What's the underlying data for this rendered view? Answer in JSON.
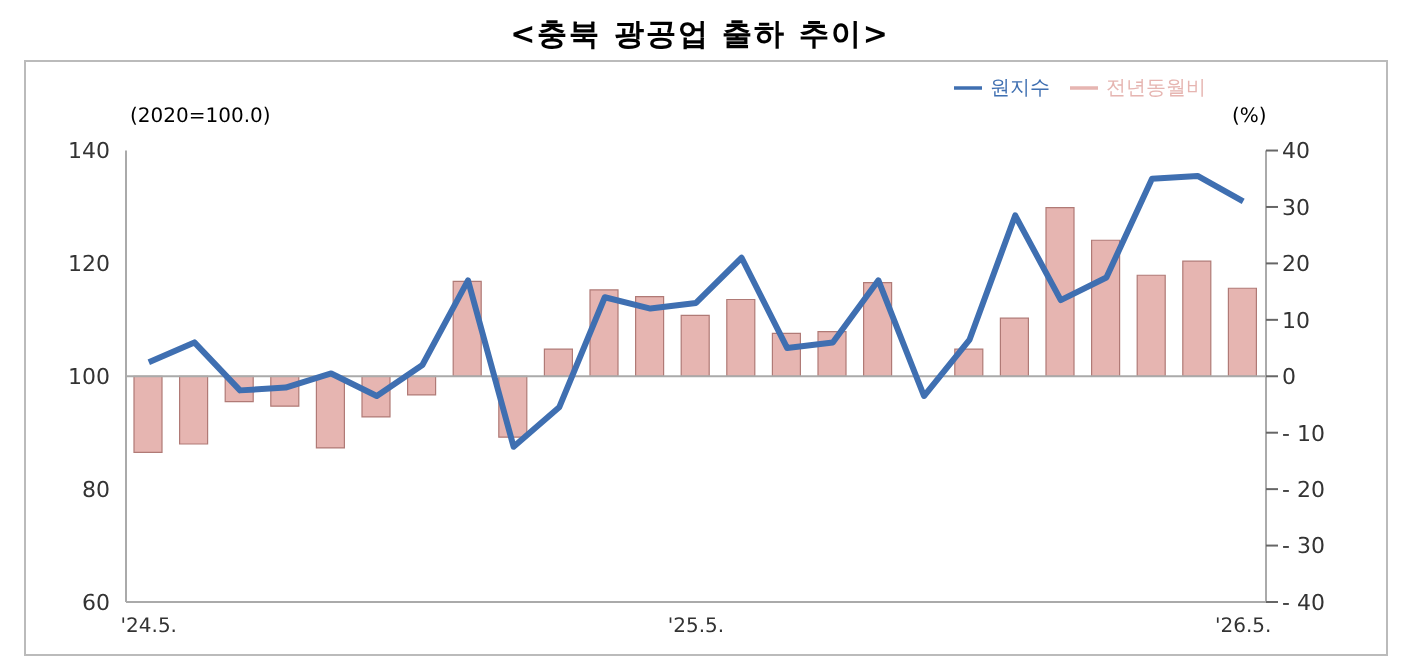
{
  "chart_data": {
    "type": "bar",
    "title": "<충북 광공업 출하 추이>",
    "ylabel": "(2020=100.0)",
    "y2label": "(%)",
    "categories": [
      "'24.5.",
      null,
      null,
      null,
      null,
      null,
      null,
      null,
      null,
      null,
      null,
      null,
      "'25.5.",
      null,
      null,
      null,
      null,
      null,
      null,
      null,
      null,
      null,
      null,
      null,
      "'26.5."
    ],
    "series": [
      {
        "name": "전년동월비",
        "axis": "y2",
        "color": "#e6b5b1",
        "values": [
          -13.5,
          -12,
          -4.5,
          -5.3,
          -12.7,
          -7.2,
          -3.3,
          16.8,
          -10.8,
          4.8,
          15.3,
          14.1,
          10.8,
          13.6,
          7.6,
          7.9,
          16.6,
          0,
          4.8,
          10.3,
          29.9,
          24.1,
          17.9,
          20.4,
          15.6
        ]
      },
      {
        "name": "원지수",
        "type": "line",
        "color": "#3f6fb1",
        "values": [
          102.5,
          106,
          97.5,
          98,
          100.5,
          96.5,
          102,
          117,
          87.5,
          94.5,
          114,
          112,
          113,
          121,
          105,
          106,
          117,
          96.5,
          106.5,
          128.5,
          113.5,
          117.5,
          135,
          135.5,
          131
        ]
      }
    ],
    "ylim": [
      60,
      140
    ],
    "yticks": [
      60,
      80,
      100,
      120,
      140
    ],
    "y2lim": [
      -40,
      40
    ],
    "y2ticks": [
      -40,
      -30,
      -20,
      -10,
      0,
      10,
      20,
      30,
      40
    ],
    "ref_lines": [
      {
        "axis": "y2",
        "value": 0,
        "color": "#aaaaaa"
      }
    ],
    "legend": "top right",
    "grid": false,
    "marker": "none"
  }
}
